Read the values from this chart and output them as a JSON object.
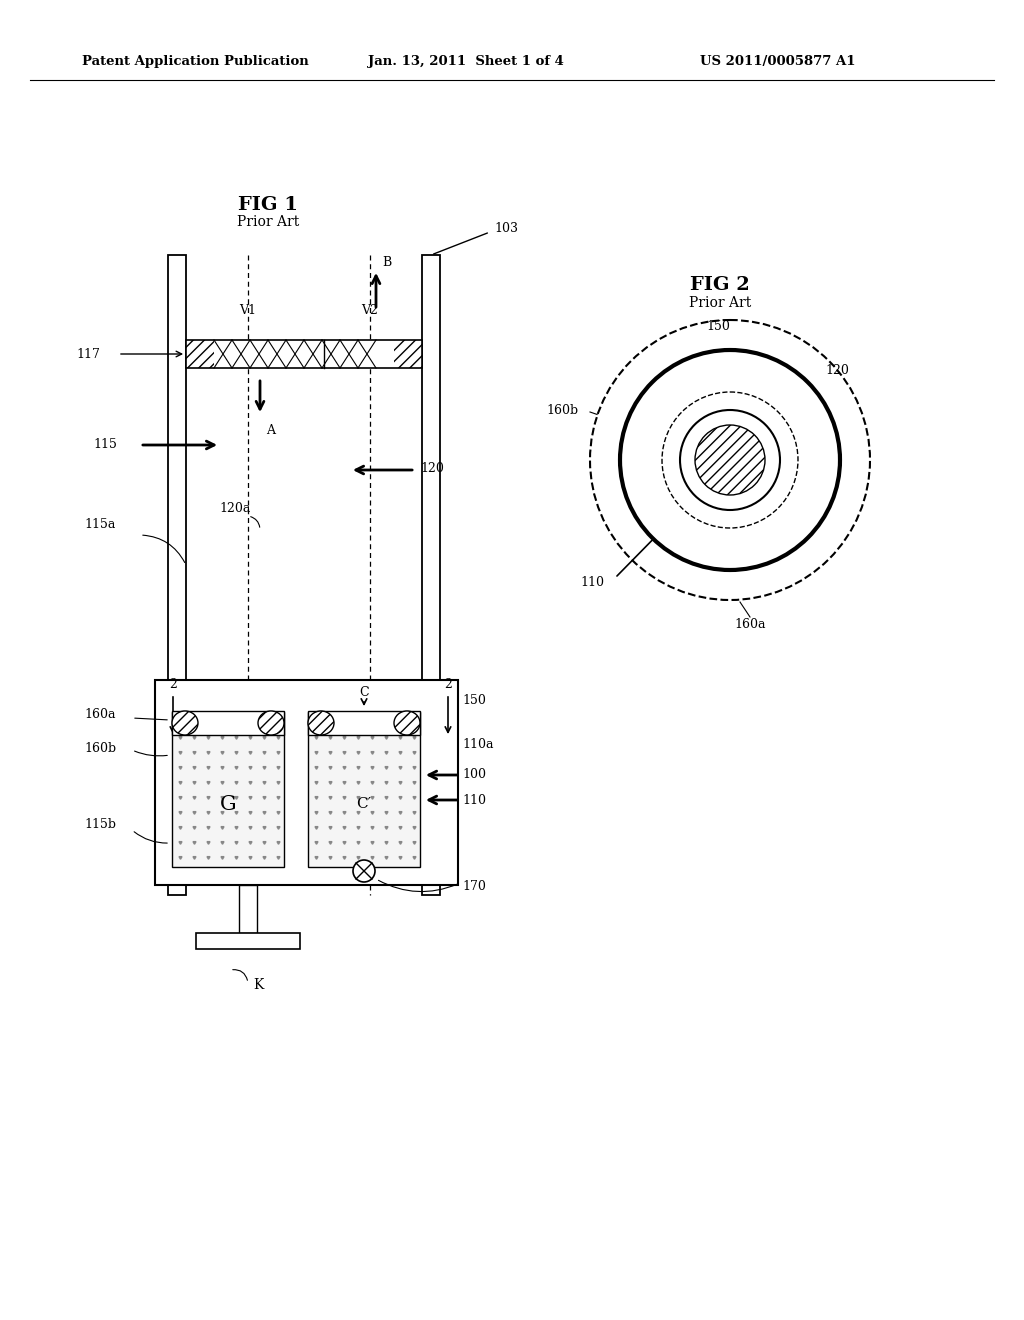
{
  "bg_color": "#ffffff",
  "header_left": "Patent Application Publication",
  "header_mid": "Jan. 13, 2011  Sheet 1 of 4",
  "header_right": "US 2011/0005877 A1",
  "fig1_title": "FIG 1",
  "fig1_subtitle": "Prior Art",
  "fig2_title": "FIG 2",
  "fig2_subtitle": "Prior Art",
  "line_color": "#000000",
  "hatch_color": "#000000"
}
